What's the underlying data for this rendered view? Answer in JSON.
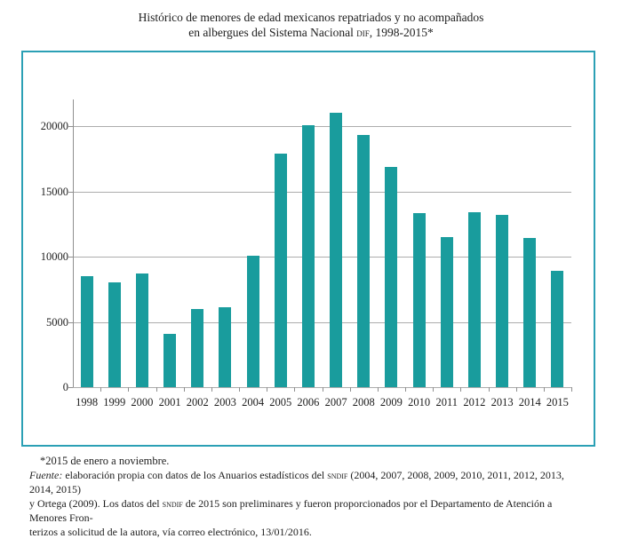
{
  "header": {
    "title_line1": "Histórico de menores de edad mexicanos repatriados y no acompañados",
    "title_line2_segments": [
      {
        "text": "en albergues del Sistema Nacional "
      },
      {
        "text": "dif",
        "style": "sc"
      },
      {
        "text": ", 1998-2015*"
      }
    ]
  },
  "chart_data": {
    "type": "bar",
    "title": "Histórico de menores de edad mexicanos repatriados y no acompañados en albergues del Sistema Nacional DIF, 1998-2015*",
    "categories": [
      "1998",
      "1999",
      "2000",
      "2001",
      "2002",
      "2003",
      "2004",
      "2005",
      "2006",
      "2007",
      "2008",
      "2009",
      "2010",
      "2011",
      "2012",
      "2013",
      "2014",
      "2015"
    ],
    "values": [
      8500,
      8000,
      8700,
      4100,
      6000,
      6100,
      10100,
      17900,
      20100,
      21000,
      19300,
      16900,
      13300,
      11500,
      13400,
      13200,
      11400,
      8900
    ],
    "xlabel": "",
    "ylabel": "",
    "yticks": [
      0,
      5000,
      10000,
      15000,
      20000
    ],
    "ylim": [
      0,
      22000
    ],
    "grid": true,
    "legend_position": "none",
    "bar_color": "#199c9d",
    "frame_color": "#2ba0b5",
    "gridline_color": "#adadad",
    "axis_color": "#8f8f8f"
  },
  "footer": {
    "note": "*2015 de enero a noviembre.",
    "fuente_lines": [
      [
        {
          "text": "Fuente:",
          "style": "it"
        },
        {
          "text": " elaboración propia con datos de los Anuarios estadísticos del "
        },
        {
          "text": "sndif",
          "style": "sc"
        },
        {
          "text": " (2004, 2007, 2008, 2009, 2010, 2011, 2012, 2013, 2014, 2015)"
        }
      ],
      [
        {
          "text": "y Ortega (2009). Los datos del "
        },
        {
          "text": "sndif",
          "style": "sc"
        },
        {
          "text": " de 2015 son preliminares y fueron proporcionados por el Departamento de Atención a Menores Fron-"
        }
      ],
      [
        {
          "text": "terizos a solicitud de la autora, vía correo electrónico, 13/01/2016."
        }
      ]
    ]
  }
}
